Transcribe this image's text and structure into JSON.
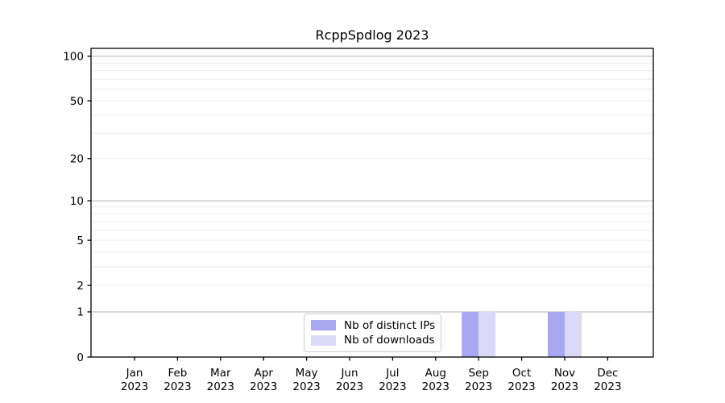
{
  "chart_data": {
    "type": "bar",
    "title": "RcppSpdlog 2023",
    "xlabel": "",
    "ylabel": "",
    "categories": [
      "Jan",
      "Feb",
      "Mar",
      "Apr",
      "May",
      "Jun",
      "Jul",
      "Aug",
      "Sep",
      "Oct",
      "Nov",
      "Dec"
    ],
    "x_tick_line2": "2023",
    "series": [
      {
        "name": "Nb of distinct IPs",
        "color": "#a7a7f2",
        "values": [
          0,
          0,
          0,
          0,
          0,
          0,
          0,
          0,
          1,
          0,
          1,
          0
        ]
      },
      {
        "name": "Nb of downloads",
        "color": "#dadaf8",
        "values": [
          0,
          0,
          0,
          0,
          0,
          0,
          0,
          0,
          1,
          0,
          1,
          0
        ]
      }
    ],
    "y_scale": "log1p",
    "ylim": [
      0,
      113
    ],
    "y_ticks": [
      0,
      1,
      2,
      5,
      10,
      20,
      50,
      100
    ],
    "y_minor_gridlines": [
      3,
      4,
      6,
      7,
      8,
      9,
      30,
      40,
      60,
      70,
      80,
      90
    ],
    "y_emphasized_gridlines": [
      1,
      10,
      100
    ],
    "grid": true,
    "legend_position": "lower center",
    "colors": {
      "grid_minor": "#ececec",
      "grid_major": "#b3b3b3",
      "axis": "#000000",
      "text": "#000000",
      "background": "#ffffff",
      "legend_border": "#cccccc"
    }
  }
}
